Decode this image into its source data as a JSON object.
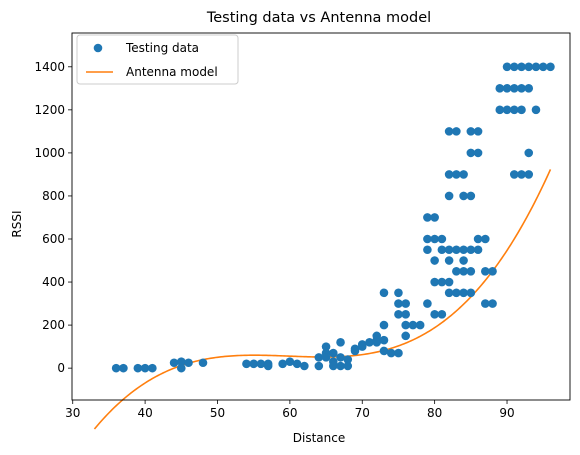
{
  "chart_data": {
    "type": "scatter",
    "title": "Testing data vs Antenna model",
    "xlabel": "Distance",
    "ylabel": "RSSI",
    "xlim": [
      29.9,
      98.7
    ],
    "ylim": [
      -148,
      1557
    ],
    "xticks": [
      30,
      40,
      50,
      60,
      70,
      80,
      90
    ],
    "yticks": [
      0,
      200,
      400,
      600,
      800,
      1000,
      1200,
      1400
    ],
    "grid": false,
    "legend_position": "top-left",
    "colors": {
      "scatter": "#1f77b4",
      "model": "#ff7f0e"
    },
    "series": [
      {
        "name": "Testing data",
        "kind": "scatter",
        "points": [
          [
            36,
            0
          ],
          [
            37,
            0
          ],
          [
            39,
            0
          ],
          [
            40,
            0
          ],
          [
            41,
            0
          ],
          [
            44,
            25
          ],
          [
            45,
            30
          ],
          [
            45,
            0
          ],
          [
            46,
            25
          ],
          [
            48,
            25
          ],
          [
            54,
            20
          ],
          [
            55,
            20
          ],
          [
            56,
            20
          ],
          [
            57,
            20
          ],
          [
            57,
            10
          ],
          [
            59,
            20
          ],
          [
            60,
            30
          ],
          [
            61,
            20
          ],
          [
            62,
            10
          ],
          [
            64,
            50
          ],
          [
            64,
            10
          ],
          [
            65,
            100
          ],
          [
            65,
            70
          ],
          [
            65,
            50
          ],
          [
            66,
            70
          ],
          [
            66,
            30
          ],
          [
            66,
            10
          ],
          [
            67,
            120
          ],
          [
            67,
            50
          ],
          [
            67,
            10
          ],
          [
            68,
            40
          ],
          [
            68,
            10
          ],
          [
            69,
            90
          ],
          [
            69,
            80
          ],
          [
            70,
            110
          ],
          [
            70,
            100
          ],
          [
            71,
            120
          ],
          [
            72,
            150
          ],
          [
            72,
            130
          ],
          [
            72,
            120
          ],
          [
            73,
            350
          ],
          [
            73,
            200
          ],
          [
            73,
            130
          ],
          [
            73,
            80
          ],
          [
            74,
            70
          ],
          [
            75,
            350
          ],
          [
            75,
            300
          ],
          [
            75,
            250
          ],
          [
            75,
            70
          ],
          [
            76,
            300
          ],
          [
            76,
            250
          ],
          [
            76,
            200
          ],
          [
            76,
            150
          ],
          [
            77,
            200
          ],
          [
            78,
            200
          ],
          [
            79,
            700
          ],
          [
            79,
            600
          ],
          [
            79,
            550
          ],
          [
            79,
            300
          ],
          [
            80,
            700
          ],
          [
            80,
            600
          ],
          [
            80,
            500
          ],
          [
            80,
            400
          ],
          [
            80,
            250
          ],
          [
            81,
            600
          ],
          [
            81,
            550
          ],
          [
            81,
            400
          ],
          [
            81,
            250
          ],
          [
            82,
            1100
          ],
          [
            82,
            900
          ],
          [
            82,
            800
          ],
          [
            82,
            550
          ],
          [
            82,
            500
          ],
          [
            82,
            400
          ],
          [
            82,
            350
          ],
          [
            83,
            1100
          ],
          [
            83,
            900
          ],
          [
            83,
            550
          ],
          [
            83,
            450
          ],
          [
            83,
            350
          ],
          [
            84,
            900
          ],
          [
            84,
            800
          ],
          [
            84,
            550
          ],
          [
            84,
            500
          ],
          [
            84,
            450
          ],
          [
            84,
            350
          ],
          [
            85,
            1100
          ],
          [
            85,
            1000
          ],
          [
            85,
            800
          ],
          [
            85,
            550
          ],
          [
            85,
            450
          ],
          [
            85,
            350
          ],
          [
            86,
            1100
          ],
          [
            86,
            1000
          ],
          [
            86,
            600
          ],
          [
            86,
            550
          ],
          [
            87,
            600
          ],
          [
            87,
            450
          ],
          [
            87,
            300
          ],
          [
            88,
            450
          ],
          [
            88,
            300
          ],
          [
            90,
            1300
          ],
          [
            90,
            1200
          ],
          [
            91,
            1400
          ],
          [
            91,
            1300
          ],
          [
            91,
            1200
          ],
          [
            92,
            1400
          ],
          [
            92,
            1300
          ],
          [
            92,
            1200
          ],
          [
            92,
            900
          ],
          [
            93,
            1400
          ],
          [
            93,
            1300
          ],
          [
            93,
            900
          ],
          [
            94,
            1400
          ],
          [
            94,
            1200
          ],
          [
            95,
            1400
          ],
          [
            96,
            1400
          ],
          [
            89,
            1300
          ],
          [
            89,
            1200
          ],
          [
            90,
            1400
          ],
          [
            91,
            900
          ],
          [
            93,
            1000
          ]
        ]
      },
      {
        "name": "Antenna model",
        "kind": "line",
        "cubic_coefficients": [
          -4009.8,
          206.47,
          -3.4725,
          0.019344
        ],
        "x_range": [
          33,
          96
        ]
      }
    ]
  }
}
